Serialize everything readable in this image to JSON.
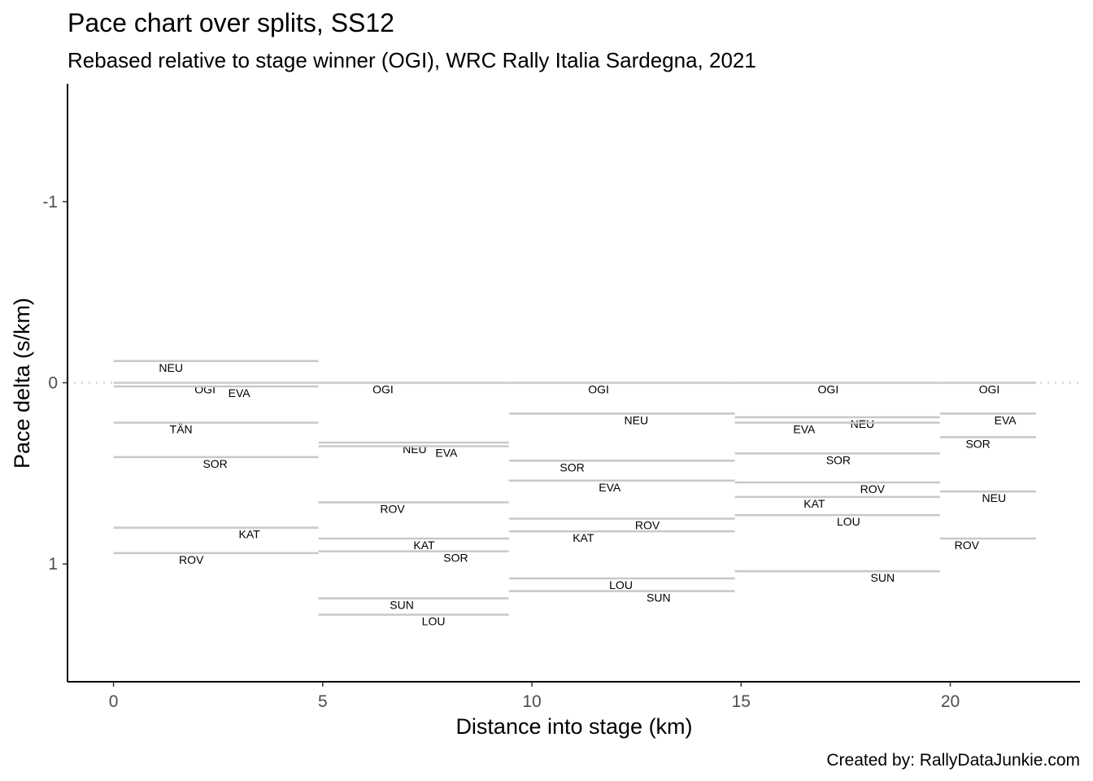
{
  "chart_data": {
    "type": "line",
    "title": "Pace chart over splits, SS12",
    "subtitle": "Rebased relative to stage winner (OGI), WRC Rally Italia Sardegna, 2021",
    "xlabel": "Distance into stage (km)",
    "ylabel": "Pace delta (s/km)",
    "caption": "Created by: RallyDataJunkie.com",
    "xlim": [
      -1.1,
      23.1
    ],
    "ylim": [
      1.65,
      -1.65
    ],
    "y_reversed": true,
    "x_ticks": [
      0,
      5,
      10,
      15,
      20
    ],
    "x_tick_labels": [
      "0",
      "5",
      "10",
      "15",
      "20"
    ],
    "y_ticks": [
      -1,
      0,
      1
    ],
    "y_tick_labels": [
      "-1",
      "0",
      "1"
    ],
    "reference_line": {
      "y": 0,
      "style": "dotted"
    },
    "splits": [
      {
        "start": 0,
        "end": 4.9,
        "segments": [
          {
            "driver": "NEU",
            "pace": -0.12
          },
          {
            "driver": "OGI",
            "pace": 0.0
          },
          {
            "driver": "EVA",
            "pace": 0.02
          },
          {
            "driver": "TÄN",
            "pace": 0.22
          },
          {
            "driver": "SOR",
            "pace": 0.41
          },
          {
            "driver": "KAT",
            "pace": 0.8
          },
          {
            "driver": "ROV",
            "pace": 0.94
          }
        ]
      },
      {
        "start": 4.9,
        "end": 9.45,
        "segments": [
          {
            "driver": "OGI",
            "pace": 0.0
          },
          {
            "driver": "NEU",
            "pace": 0.33
          },
          {
            "driver": "EVA",
            "pace": 0.35
          },
          {
            "driver": "ROV",
            "pace": 0.66
          },
          {
            "driver": "KAT",
            "pace": 0.86
          },
          {
            "driver": "SOR",
            "pace": 0.93
          },
          {
            "driver": "SUN",
            "pace": 1.19
          },
          {
            "driver": "LOU",
            "pace": 1.28
          }
        ]
      },
      {
        "start": 9.45,
        "end": 14.85,
        "segments": [
          {
            "driver": "OGI",
            "pace": 0.0
          },
          {
            "driver": "NEU",
            "pace": 0.17
          },
          {
            "driver": "SOR",
            "pace": 0.43
          },
          {
            "driver": "EVA",
            "pace": 0.54
          },
          {
            "driver": "ROV",
            "pace": 0.75
          },
          {
            "driver": "KAT",
            "pace": 0.82
          },
          {
            "driver": "LOU",
            "pace": 1.08
          },
          {
            "driver": "SUN",
            "pace": 1.15
          }
        ]
      },
      {
        "start": 14.85,
        "end": 19.75,
        "segments": [
          {
            "driver": "OGI",
            "pace": 0.0
          },
          {
            "driver": "NEU",
            "pace": 0.19
          },
          {
            "driver": "EVA",
            "pace": 0.22
          },
          {
            "driver": "SOR",
            "pace": 0.39
          },
          {
            "driver": "ROV",
            "pace": 0.55
          },
          {
            "driver": "KAT",
            "pace": 0.63
          },
          {
            "driver": "LOU",
            "pace": 0.73
          },
          {
            "driver": "SUN",
            "pace": 1.04
          }
        ]
      },
      {
        "start": 19.75,
        "end": 22.05,
        "segments": [
          {
            "driver": "OGI",
            "pace": 0.0
          },
          {
            "driver": "EVA",
            "pace": 0.17
          },
          {
            "driver": "SOR",
            "pace": 0.3
          },
          {
            "driver": "NEU",
            "pace": 0.6
          },
          {
            "driver": "ROV",
            "pace": 0.86
          }
        ]
      }
    ]
  }
}
